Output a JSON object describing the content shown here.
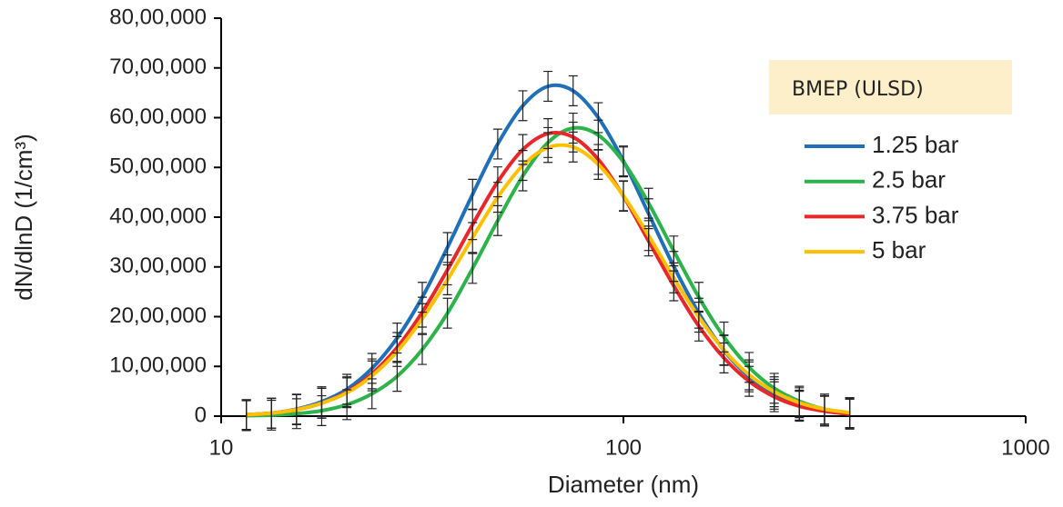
{
  "chart_data": {
    "type": "line",
    "x_label": "Diameter (nm)",
    "y_label": "dN/dlnD (1/cm³)",
    "legend_title": "BMEP (ULSD)",
    "legend_position": "upper right",
    "xscale": "log",
    "xlim": [
      10,
      1000
    ],
    "xticks": [
      10,
      100,
      1000
    ],
    "ylim": [
      0,
      8000000
    ],
    "yticks": [
      0,
      {
        "value": 1000000,
        "label": "10,00,000"
      },
      {
        "value": 2000000,
        "label": "20,00,000"
      },
      {
        "value": 3000000,
        "label": "30,00,000"
      },
      {
        "value": 4000000,
        "label": "40,00,000"
      },
      {
        "value": 5000000,
        "label": "50,00,000"
      },
      {
        "value": 6000000,
        "label": "60,00,000"
      },
      {
        "value": 7000000,
        "label": "70,00,000"
      },
      {
        "value": 8000000,
        "label": "80,00,000"
      }
    ],
    "x": [
      11.55,
      13.34,
      15.4,
      17.78,
      20.54,
      23.71,
      27.38,
      31.62,
      36.52,
      42.17,
      48.7,
      56.23,
      64.94,
      74.99,
      86.6,
      100,
      115.5,
      133.4,
      154,
      177.8,
      205.4,
      237.1,
      273.8,
      316.2,
      365.2
    ],
    "series": [
      {
        "name": "1.25 bar",
        "color": "#1f70b8",
        "error": 300000,
        "values": [
          30000,
          60000,
          140000,
          290000,
          540000,
          960000,
          1570000,
          2390000,
          3390000,
          4460000,
          5470000,
          6240000,
          6630000,
          6540000,
          6000000,
          5130000,
          4070000,
          3010000,
          2070000,
          1320000,
          790000,
          440000,
          220000,
          110000,
          50000
        ]
      },
      {
        "name": "2.5 bar",
        "color": "#2eb24b",
        "error": 300000,
        "values": [
          10000,
          20000,
          50000,
          110000,
          230000,
          450000,
          800000,
          1340000,
          2070000,
          2970000,
          3930000,
          4830000,
          5500000,
          5790000,
          5650000,
          5110000,
          4280000,
          3320000,
          2390000,
          1590000,
          980000,
          560000,
          300000,
          140000,
          70000
        ]
      },
      {
        "name": "3.75 bar",
        "color": "#e8272b",
        "error": 300000,
        "values": [
          30000,
          60000,
          130000,
          260000,
          490000,
          850000,
          1380000,
          2090000,
          2940000,
          3850000,
          4710000,
          5360000,
          5680000,
          5610000,
          5160000,
          4420000,
          3520000,
          2620000,
          1810000,
          1170000,
          700000,
          390000,
          200000,
          100000,
          40000
        ]
      },
      {
        "name": "5 bar",
        "color": "#ffc000",
        "error": 300000,
        "values": [
          30000,
          60000,
          130000,
          260000,
          470000,
          810000,
          1300000,
          1960000,
          2740000,
          3590000,
          4400000,
          5040000,
          5400000,
          5410000,
          5060000,
          4430000,
          3630000,
          2780000,
          1990000,
          1330000,
          830000,
          490000,
          270000,
          140000,
          70000
        ]
      }
    ]
  }
}
